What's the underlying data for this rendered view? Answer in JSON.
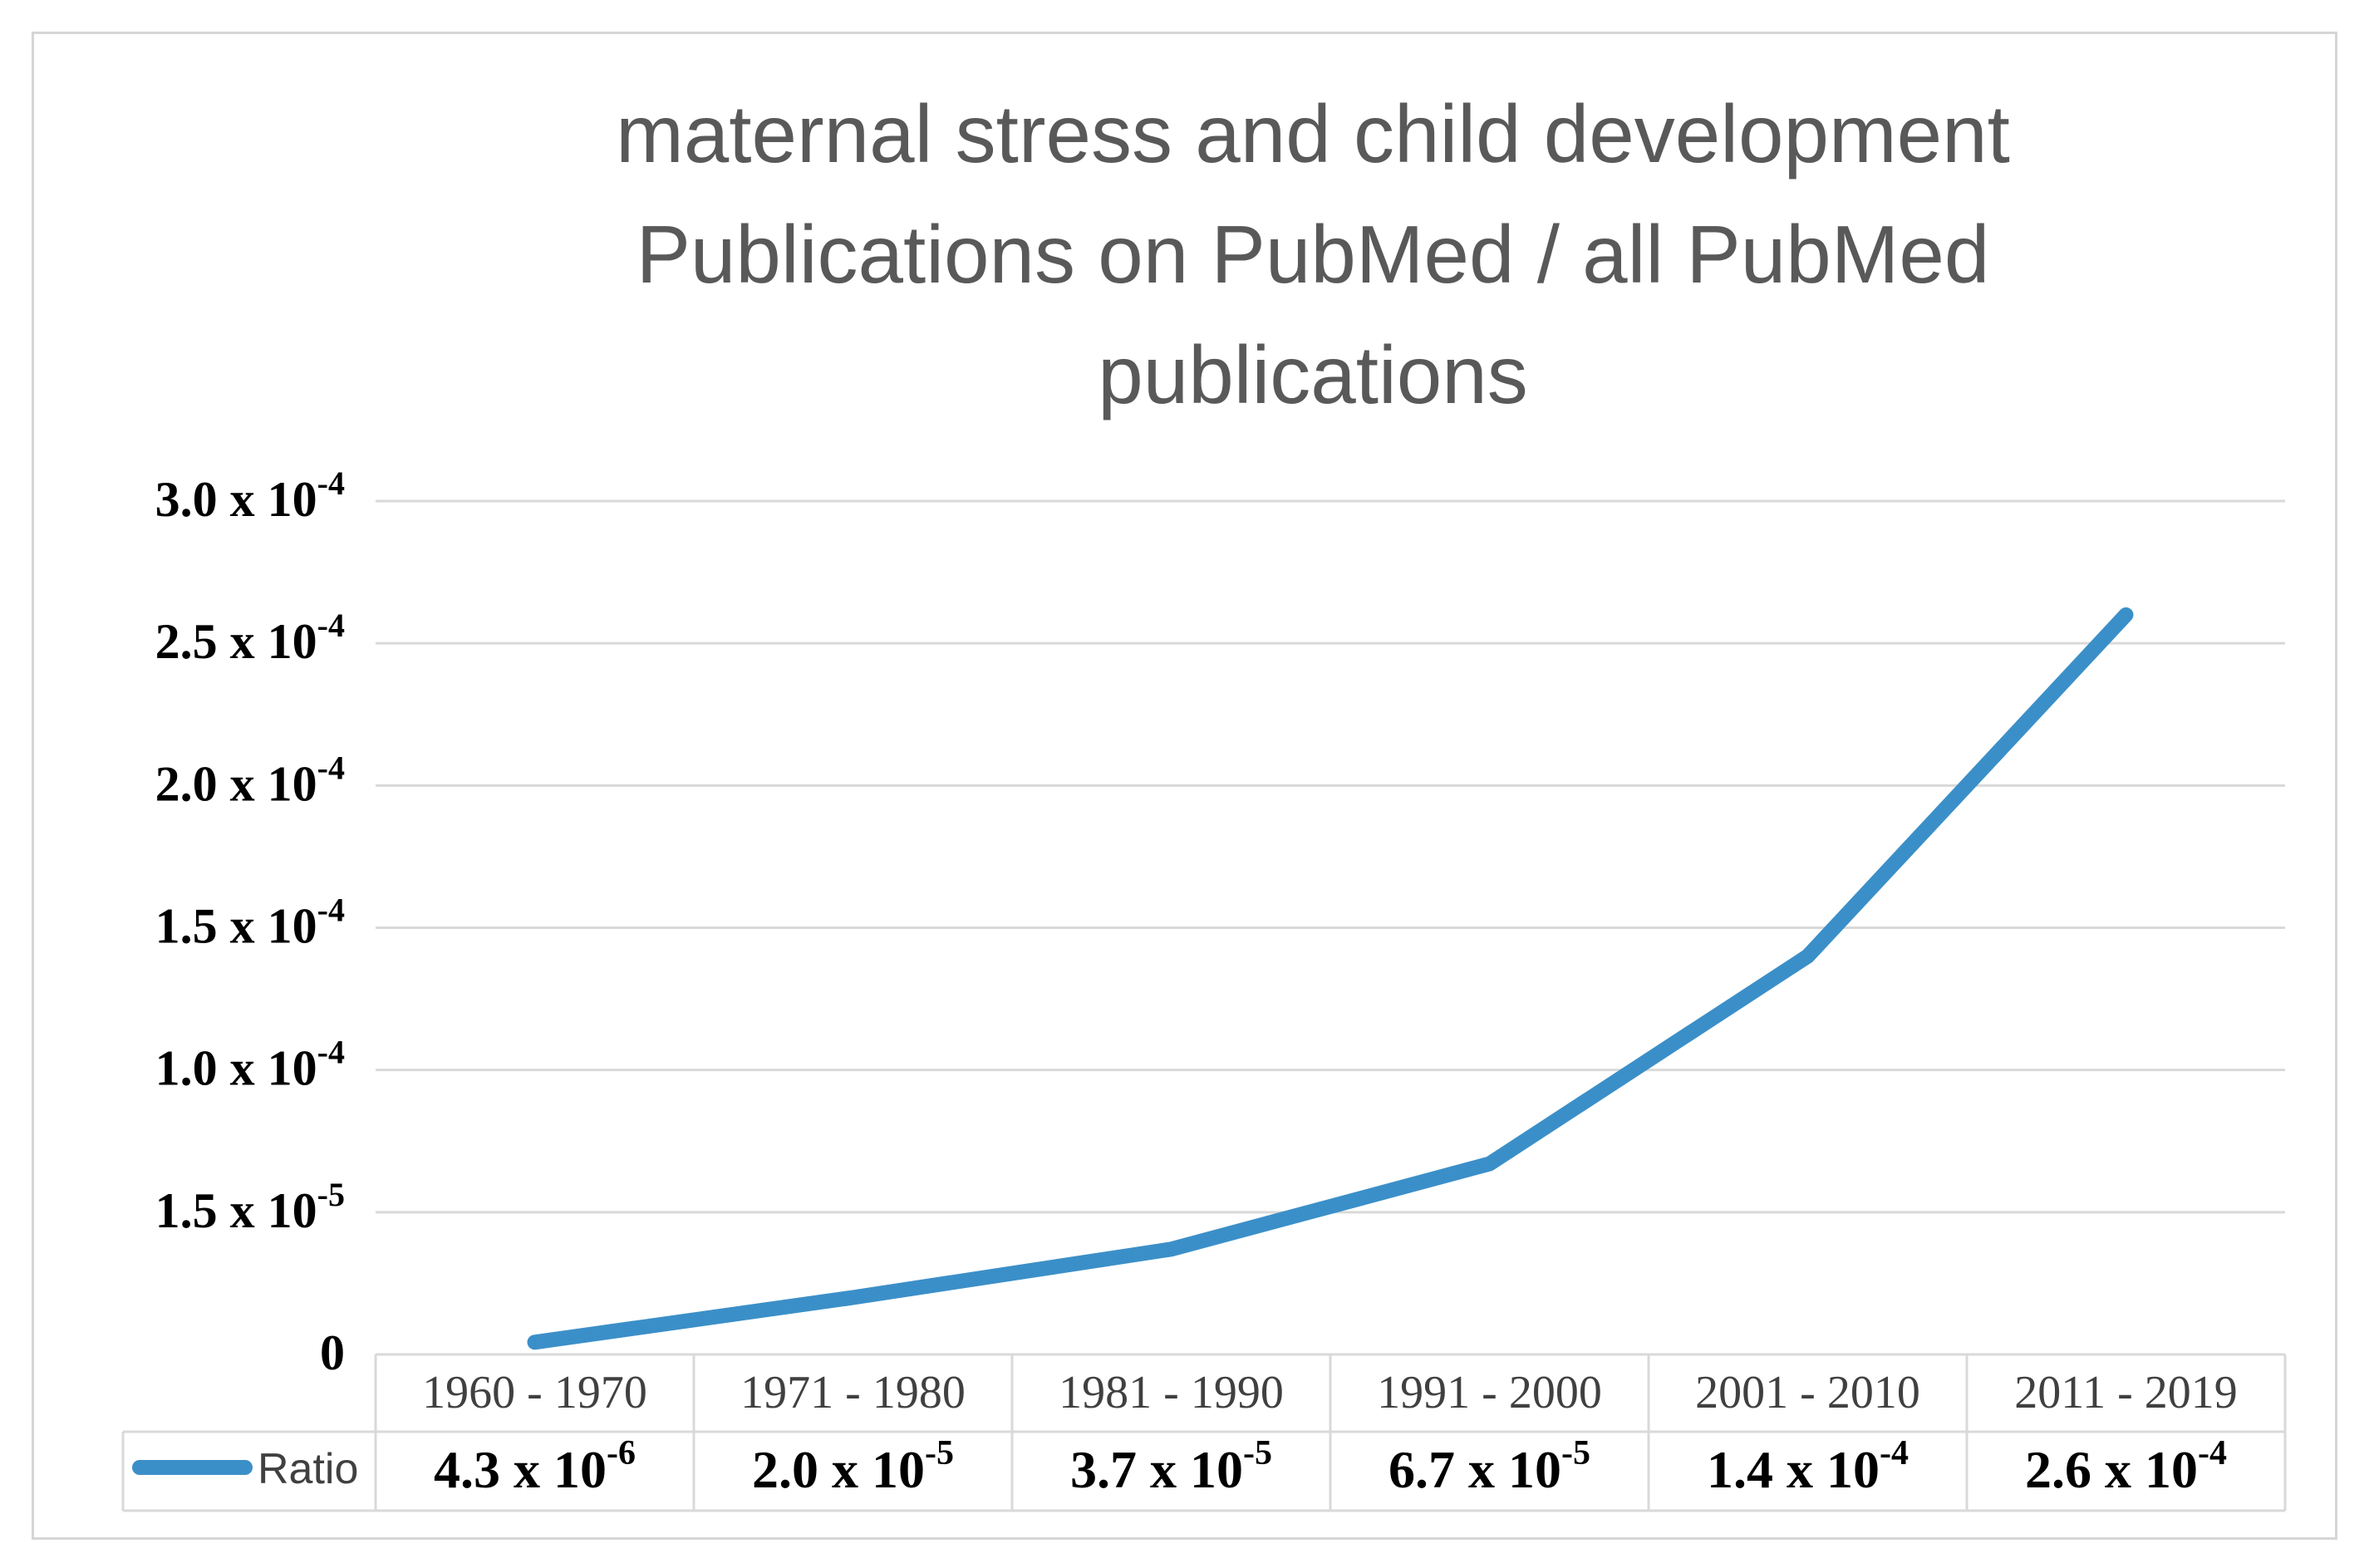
{
  "chart_data": {
    "type": "line",
    "title_lines": [
      "maternal stress and child development",
      "Publications on PubMed / all PubMed",
      "publications"
    ],
    "categories": [
      "1960 - 1970",
      "1971 - 1980",
      "1981 - 1990",
      "1991 - 2000",
      "2001 - 2010",
      "2011 - 2019"
    ],
    "series": [
      {
        "name": "Ratio",
        "color": "#3b8fc8",
        "values": [
          4.3e-06,
          2e-05,
          3.7e-05,
          6.7e-05,
          0.00014,
          0.00026
        ],
        "value_labels": [
          {
            "base": "4.3 x 10",
            "exp": "-6"
          },
          {
            "base": "2.0 x 10",
            "exp": "-5"
          },
          {
            "base": "3.7 x 10",
            "exp": "-5"
          },
          {
            "base": "6.7 x 10",
            "exp": "-5"
          },
          {
            "base": "1.4 x 10",
            "exp": "-4"
          },
          {
            "base": "2.6 x 10",
            "exp": "-4"
          }
        ]
      }
    ],
    "ylim": [
      0,
      0.0003
    ],
    "y_ticks": [
      {
        "base": "0",
        "exp": ""
      },
      {
        "base": "1.5 x 10",
        "exp": "-5"
      },
      {
        "base": "1.0 x 10",
        "exp": "-4"
      },
      {
        "base": "1.5 x 10",
        "exp": "-4"
      },
      {
        "base": "2.0 x 10",
        "exp": "-4"
      },
      {
        "base": "2.5 x 10",
        "exp": "-4"
      },
      {
        "base": "3.0 x 10",
        "exp": "-4"
      }
    ],
    "grid": true,
    "legend": "data-table-left",
    "colors": {
      "gridline": "#d9d9d9",
      "title": "#595959"
    }
  }
}
